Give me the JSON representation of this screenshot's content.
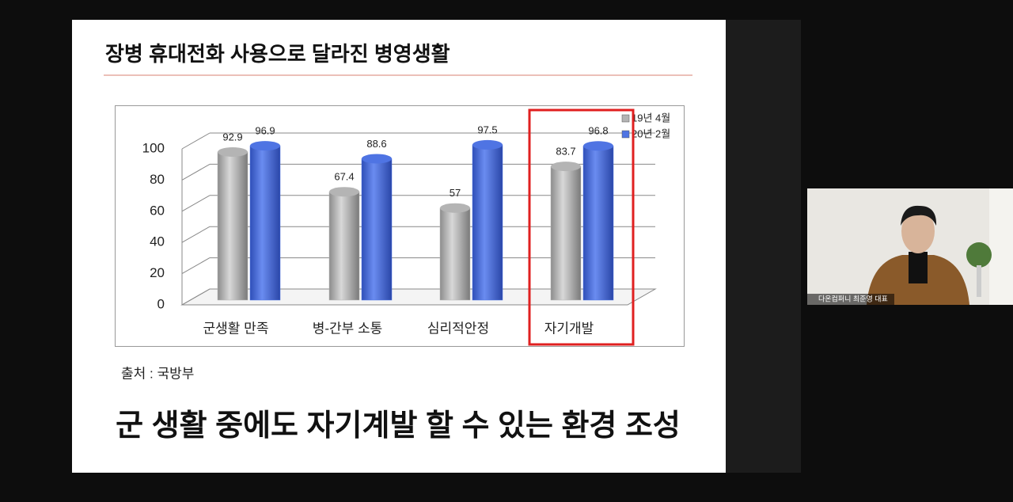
{
  "slide": {
    "title": "장병 휴대전화 사용으로 달라진 병영생활",
    "source": "출처 : 국방부",
    "caption": "군 생활 중에도 자기계발 할 수 있는 환경 조성"
  },
  "participant": {
    "label": "다온컴퍼니 최준영 대표"
  },
  "chart_data": {
    "type": "bar",
    "categories": [
      "군생활 만족",
      "병-간부 소통",
      "심리적안정",
      "자기개발"
    ],
    "series": [
      {
        "name": "19년 4월",
        "color": "#b4b4b4",
        "values": [
          92.9,
          67.4,
          57,
          83.7
        ]
      },
      {
        "name": "20년 2월",
        "color": "#4f74e3",
        "values": [
          96.9,
          88.6,
          97.5,
          96.8
        ]
      }
    ],
    "ylim": [
      0,
      100
    ],
    "yticks": [
      0,
      20,
      40,
      60,
      80,
      100
    ],
    "grid": true,
    "highlight_color": "#e02020"
  }
}
